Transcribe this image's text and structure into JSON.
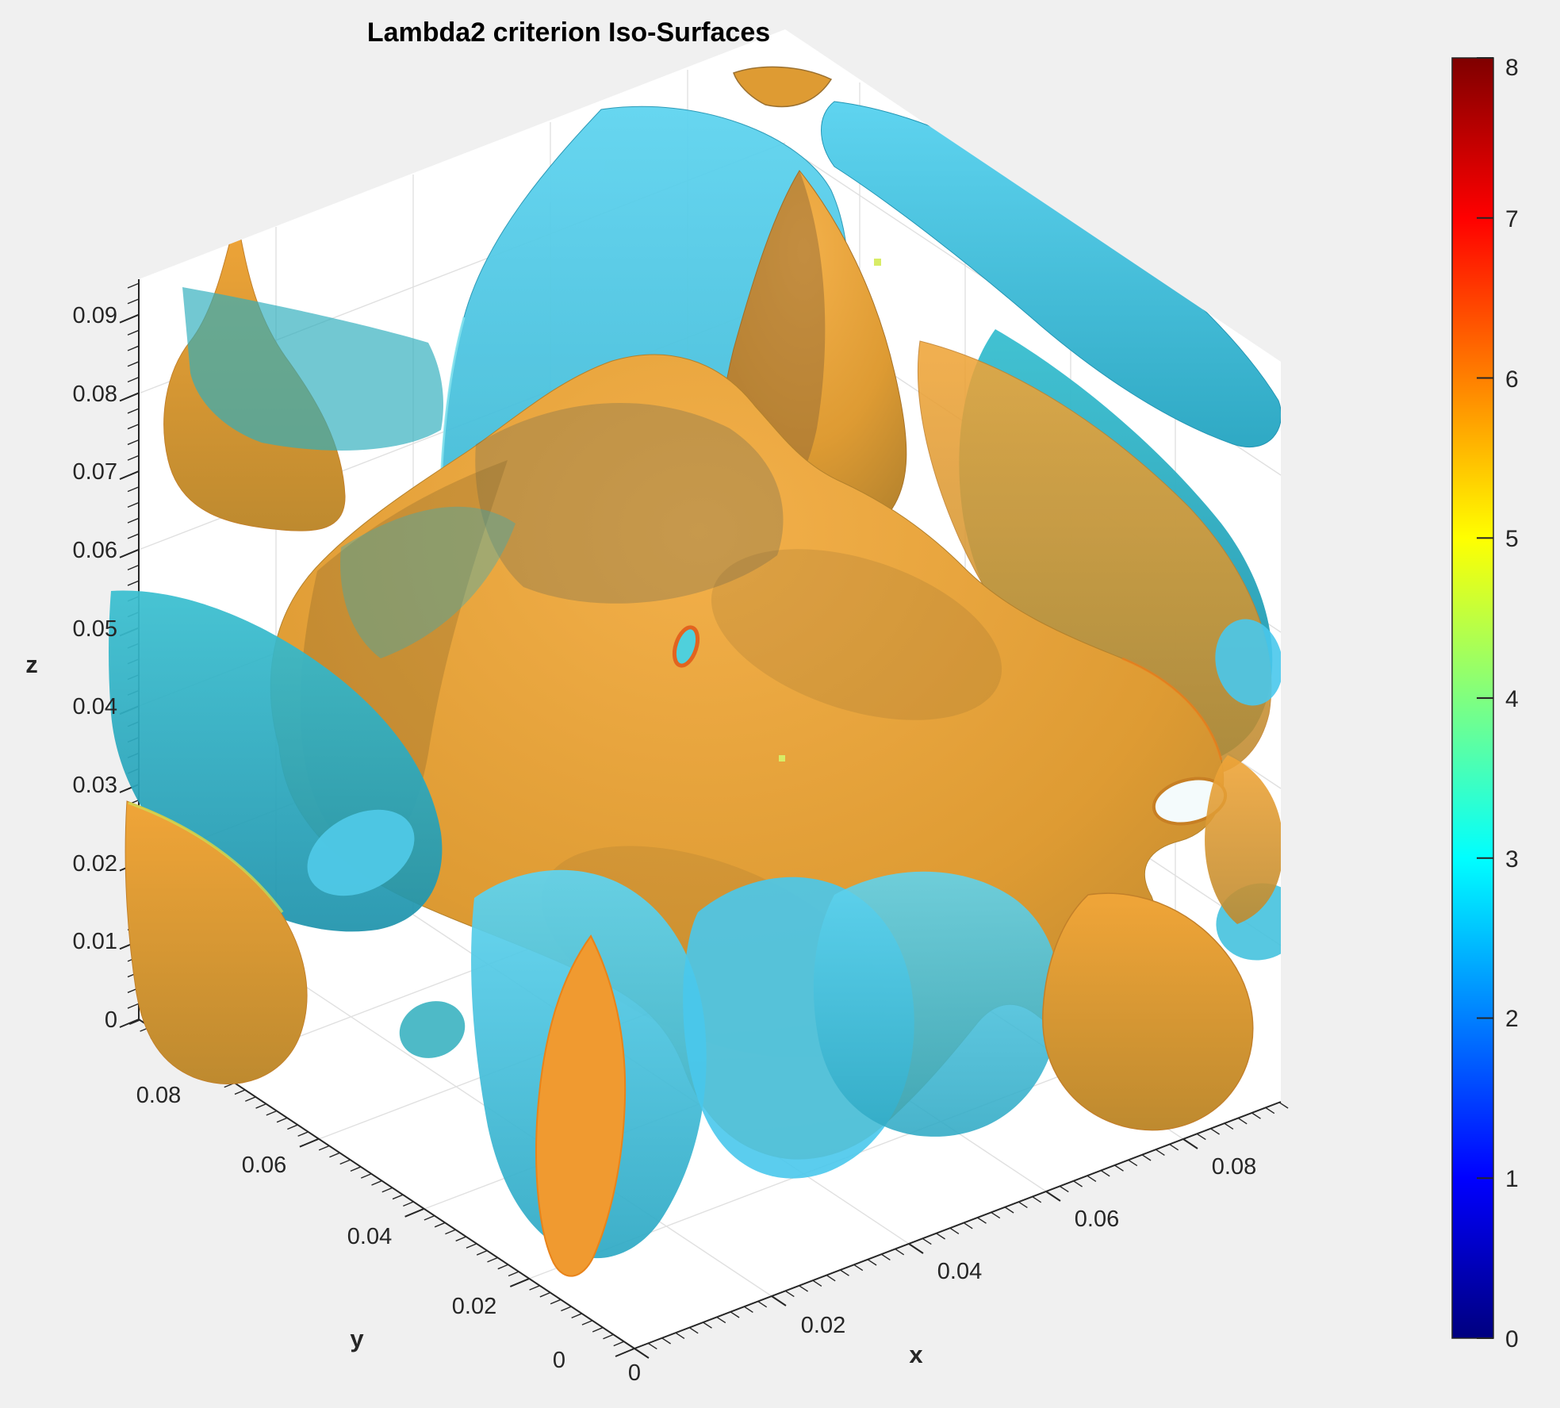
{
  "figure": {
    "background": "#f0f0f0",
    "plot_background": "#ffffff"
  },
  "chart_data": {
    "type": "isosurface-3d",
    "title": "Lambda2 criterion Iso-Surfaces",
    "axes": {
      "x": {
        "label": "x",
        "tick_labels": [
          "0",
          "0.02",
          "0.04",
          "0.06",
          "0.08"
        ],
        "range": [
          0,
          0.09
        ]
      },
      "y": {
        "label": "y",
        "tick_labels": [
          "0",
          "0.02",
          "0.04",
          "0.06",
          "0.08"
        ],
        "range": [
          0,
          0.09
        ]
      },
      "z": {
        "label": "z",
        "tick_labels": [
          "0",
          "0.01",
          "0.02",
          "0.03",
          "0.04",
          "0.05",
          "0.06",
          "0.07",
          "0.08",
          "0.09"
        ],
        "range": [
          0,
          0.09
        ]
      }
    },
    "colorbar": {
      "min": 0,
      "max": 8,
      "tick_labels": [
        "0",
        "1",
        "2",
        "3",
        "4",
        "5",
        "6",
        "7",
        "8"
      ],
      "colormap": "jet"
    },
    "isosurfaces": [
      {
        "name": "lambda2-iso-surface-cyan",
        "color_hex": "#45C2DE",
        "colorbar_value_approx": 3
      },
      {
        "name": "lambda2-iso-surface-orange",
        "color_hex": "#E09B33",
        "colorbar_value_approx": 6
      }
    ],
    "grid": true,
    "legend": "none"
  }
}
